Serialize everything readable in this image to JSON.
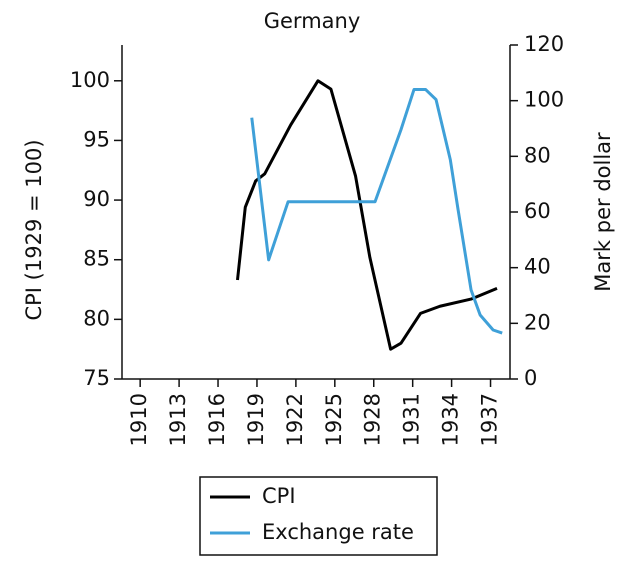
{
  "chart_data": {
    "type": "line",
    "title": "Germany",
    "y_label": "CPI (1929 = 100)",
    "y2_label": "Mark per dollar",
    "xlim": [
      1908.6,
      1938.5
    ],
    "xticks": [
      1910,
      1913,
      1916,
      1919,
      1922,
      1925,
      1928,
      1931,
      1934,
      1937
    ],
    "ylim": [
      75,
      103
    ],
    "yticks": [
      75,
      80,
      85,
      90,
      95,
      100
    ],
    "y2lim": [
      0,
      120
    ],
    "y2ticks": [
      0,
      20,
      40,
      60,
      80,
      100,
      120
    ],
    "legend": "bottom",
    "series": [
      {
        "name": "CPI",
        "color": "#000000",
        "x": [
          1917.5,
          1918.1,
          1918.9,
          1919.6,
          1921.6,
          1923.7,
          1924.7,
          1926.6,
          1927.7,
          1929.3,
          1930.1,
          1931.6,
          1933.1,
          1935.5,
          1937.5
        ],
        "values": [
          83.3,
          89.4,
          91.6,
          92.2,
          96.3,
          100,
          99.3,
          92,
          85.2,
          77.5,
          78,
          80.5,
          81.1,
          81.7,
          82.6
        ]
      },
      {
        "name": "Exchange rate",
        "color": "#3fa0d8",
        "axis": "y2",
        "x": [
          1918.6,
          1919.9,
          1921.4,
          1928.1,
          1930.1,
          1931.1,
          1932,
          1932.8,
          1933.9,
          1934.5,
          1935.5,
          1936.2,
          1937.2,
          1937.9
        ],
        "values": [
          93.9,
          42.8,
          63.7,
          63.7,
          89.6,
          104,
          104,
          100.4,
          78.8,
          60.8,
          32,
          23,
          17.6,
          16.5
        ]
      }
    ]
  }
}
